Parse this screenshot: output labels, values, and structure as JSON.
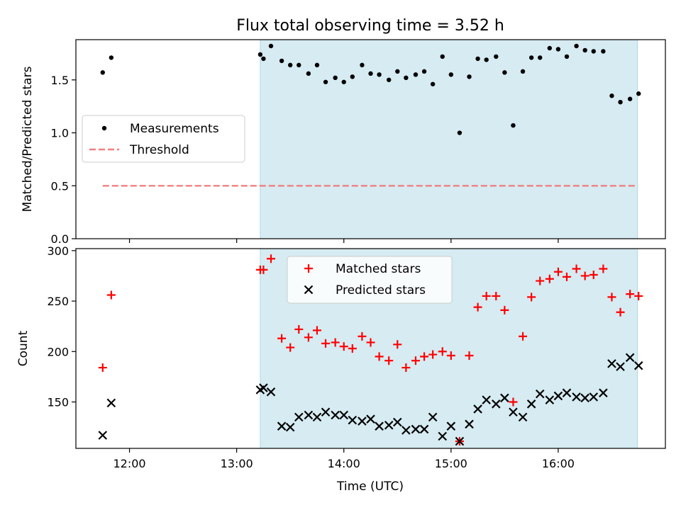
{
  "figure": {
    "title": "Flux total observing time = 3.52 h",
    "xlabel": "Time (UTC)",
    "shade_color": "#add8e6",
    "x_ticks": [
      {
        "t": 12.0,
        "label": "12:00"
      },
      {
        "t": 13.0,
        "label": "13:00"
      },
      {
        "t": 14.0,
        "label": "14:00"
      },
      {
        "t": 15.0,
        "label": "15:00"
      },
      {
        "t": 16.0,
        "label": "16:00"
      }
    ]
  },
  "chart_data": [
    {
      "type": "scatter",
      "ylabel": "Matched/Predicted stars",
      "xlim_hours": [
        11.5,
        17.0
      ],
      "ylim": [
        0,
        1.88
      ],
      "y_ticks": [
        0.0,
        0.5,
        1.0,
        1.5
      ],
      "y_tick_labels": [
        "0.0",
        "0.5",
        "1.0",
        "1.5"
      ],
      "shaded_span_hours": [
        13.22,
        16.74
      ],
      "legend": {
        "location": "center-left",
        "entries": [
          "Measurements",
          "Threshold"
        ]
      },
      "threshold": {
        "name": "Threshold",
        "value": 0.5,
        "x_range_hours": [
          11.75,
          16.74
        ],
        "color": "#f08080",
        "style": "dashed"
      },
      "series": [
        {
          "name": "Measurements",
          "marker": "dot",
          "color": "#000000",
          "x_hours": [
            11.75,
            11.83,
            13.22,
            13.25,
            13.32,
            13.42,
            13.5,
            13.58,
            13.67,
            13.75,
            13.83,
            13.92,
            14.0,
            14.08,
            14.17,
            14.25,
            14.33,
            14.42,
            14.5,
            14.58,
            14.67,
            14.75,
            14.83,
            14.92,
            15.0,
            15.08,
            15.17,
            15.25,
            15.33,
            15.42,
            15.5,
            15.58,
            15.67,
            15.75,
            15.83,
            15.92,
            16.0,
            16.08,
            16.17,
            16.25,
            16.33,
            16.42,
            16.5,
            16.58,
            16.67,
            16.75
          ],
          "values": [
            1.57,
            1.71,
            1.74,
            1.7,
            1.82,
            1.68,
            1.64,
            1.64,
            1.56,
            1.64,
            1.48,
            1.52,
            1.48,
            1.53,
            1.64,
            1.56,
            1.55,
            1.5,
            1.58,
            1.52,
            1.55,
            1.58,
            1.46,
            1.72,
            1.55,
            1.0,
            1.53,
            1.7,
            1.69,
            1.72,
            1.57,
            1.07,
            1.58,
            1.71,
            1.71,
            1.8,
            1.79,
            1.72,
            1.82,
            1.78,
            1.77,
            1.77,
            1.35,
            1.29,
            1.32,
            1.37
          ]
        }
      ]
    },
    {
      "type": "scatter",
      "ylabel": "Count",
      "xlim_hours": [
        11.5,
        17.0
      ],
      "ylim": [
        104,
        302
      ],
      "y_ticks": [
        150,
        200,
        250,
        300
      ],
      "y_tick_labels": [
        "150",
        "200",
        "250",
        "300"
      ],
      "shaded_span_hours": [
        13.22,
        16.74
      ],
      "legend": {
        "location": "top-center",
        "entries": [
          "Matched stars",
          "Predicted stars"
        ]
      },
      "series": [
        {
          "name": "Matched stars",
          "marker": "plus",
          "color": "#ff0000",
          "x_hours": [
            11.75,
            11.83,
            13.22,
            13.25,
            13.32,
            13.42,
            13.5,
            13.58,
            13.67,
            13.75,
            13.83,
            13.92,
            14.0,
            14.08,
            14.17,
            14.25,
            14.33,
            14.42,
            14.5,
            14.58,
            14.67,
            14.75,
            14.83,
            14.92,
            15.0,
            15.08,
            15.17,
            15.25,
            15.33,
            15.42,
            15.5,
            15.58,
            15.67,
            15.75,
            15.83,
            15.92,
            16.0,
            16.08,
            16.17,
            16.25,
            16.33,
            16.42,
            16.5,
            16.58,
            16.67,
            16.75
          ],
          "values": [
            184,
            256,
            281,
            281,
            292,
            213,
            204,
            222,
            214,
            221,
            208,
            209,
            205,
            203,
            215,
            209,
            195,
            191,
            207,
            184,
            191,
            195,
            197,
            200,
            196,
            111,
            196,
            244,
            255,
            255,
            241,
            150,
            215,
            254,
            270,
            272,
            279,
            274,
            282,
            275,
            276,
            282,
            254,
            239,
            257,
            255
          ]
        },
        {
          "name": "Predicted stars",
          "marker": "x",
          "color": "#000000",
          "x_hours": [
            11.75,
            11.83,
            13.22,
            13.25,
            13.32,
            13.42,
            13.5,
            13.58,
            13.67,
            13.75,
            13.83,
            13.92,
            14.0,
            14.08,
            14.17,
            14.25,
            14.33,
            14.42,
            14.5,
            14.58,
            14.67,
            14.75,
            14.83,
            14.92,
            15.0,
            15.08,
            15.17,
            15.25,
            15.33,
            15.42,
            15.5,
            15.58,
            15.67,
            15.75,
            15.83,
            15.92,
            16.0,
            16.08,
            16.17,
            16.25,
            16.33,
            16.42,
            16.5,
            16.58,
            16.67,
            16.75
          ],
          "values": [
            117,
            149,
            162,
            164,
            160,
            126,
            125,
            135,
            137,
            135,
            140,
            137,
            137,
            132,
            131,
            133,
            126,
            127,
            130,
            122,
            123,
            123,
            135,
            116,
            126,
            111,
            128,
            143,
            152,
            148,
            154,
            140,
            135,
            148,
            158,
            152,
            156,
            159,
            155,
            154,
            155,
            159,
            188,
            185,
            194,
            186
          ]
        }
      ]
    }
  ]
}
